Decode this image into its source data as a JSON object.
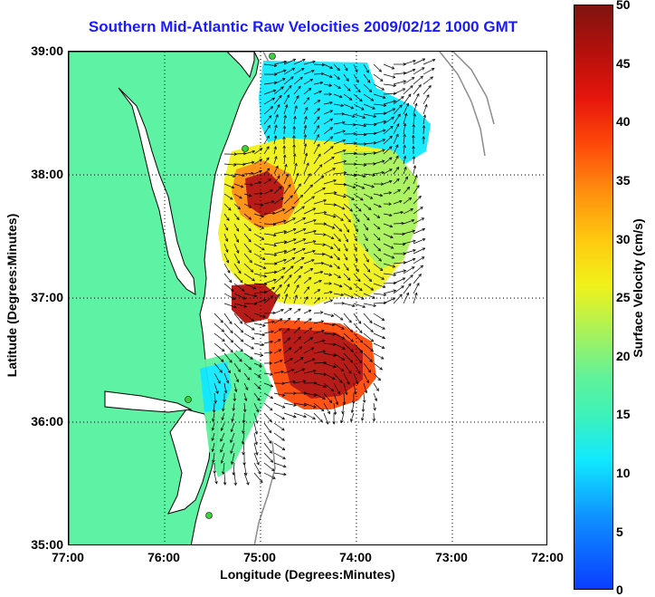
{
  "title": "Southern Mid-Atlantic Raw Velocities 2009/02/12 1000 GMT",
  "x_axis": {
    "label": "Longitude (Degrees:Minutes)",
    "ticks": [
      "77:00",
      "76:00",
      "75:00",
      "74:00",
      "73:00",
      "72:00"
    ]
  },
  "y_axis": {
    "label": "Latitude (Degrees:Minutes)",
    "ticks": [
      "39:00",
      "38:00",
      "37:00",
      "36:00",
      "35:00"
    ]
  },
  "colorbar": {
    "label": "Surface Velocity (cm/s)",
    "ticks": [
      "50",
      "45",
      "40",
      "35",
      "30",
      "25",
      "20",
      "15",
      "10",
      "5",
      "0"
    ],
    "range": [
      0,
      50
    ],
    "colors": {
      "low": "#0a3dff",
      "mid_low": "#11e8ff",
      "mid": "#f0f21a",
      "mid_high": "#ff4a0a",
      "high": "#7f1410"
    }
  },
  "map": {
    "land_color": "#5ef2a4",
    "coast_color": "#000000",
    "bathymetry_color": "#8c8c8c",
    "grid": "dotted",
    "vector_color": "#000000"
  }
}
